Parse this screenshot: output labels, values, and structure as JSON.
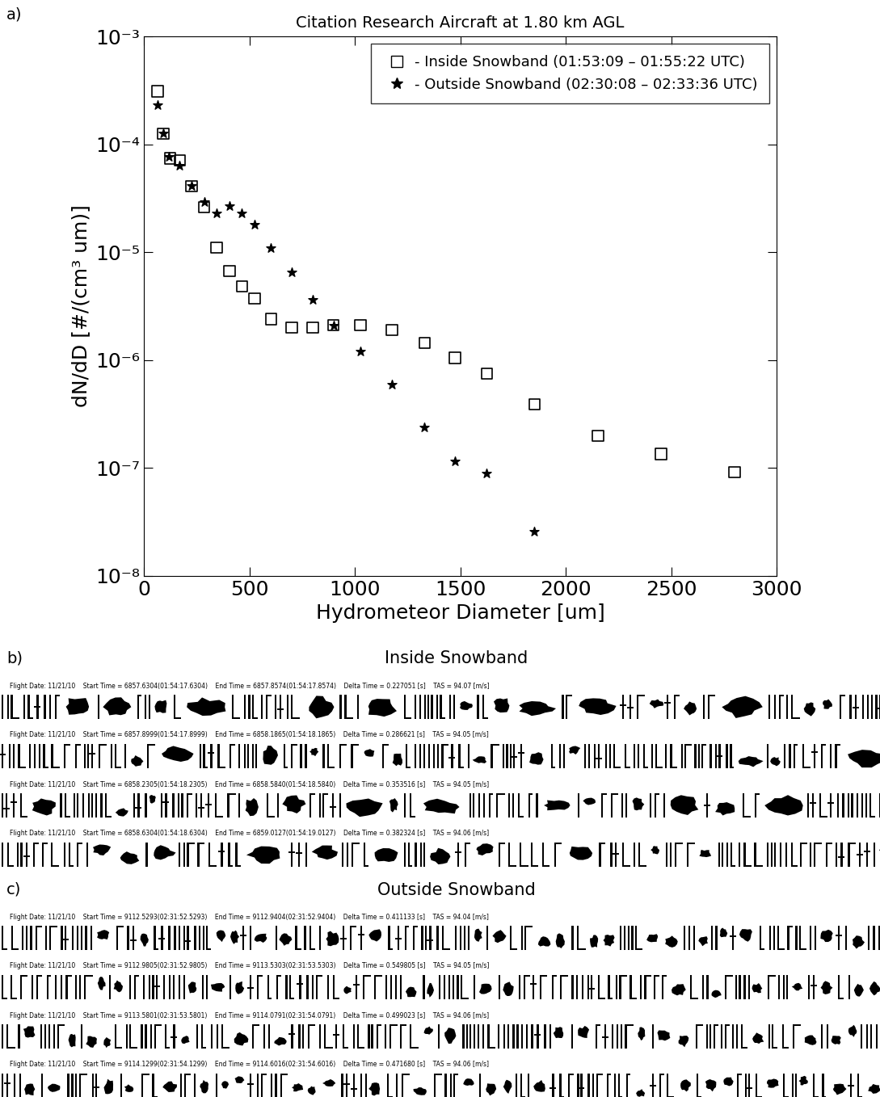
{
  "chart_data": {
    "type": "scatter",
    "panel_label": "a)",
    "title": "Citation Research Aircraft at 1.80 km AGL",
    "x_label": "Hydrometeor Diameter [um]",
    "y_label": "dN/dD [#/(cm³ um)]",
    "log": "y",
    "grid": false,
    "legend": "upper right",
    "xlim": [
      0,
      3000
    ],
    "xticks": [
      0,
      500,
      1000,
      1500,
      2000,
      2500,
      3000
    ],
    "ylim": [
      1e-08,
      0.001
    ],
    "yticks": [
      {
        "value": 1e-08,
        "label": "10⁻⁸"
      },
      {
        "value": 1e-07,
        "label": "10⁻⁷"
      },
      {
        "value": 1e-06,
        "label": "10⁻⁶"
      },
      {
        "value": 1e-05,
        "label": "10⁻⁵"
      },
      {
        "value": 0.0001,
        "label": "10⁻⁴"
      },
      {
        "value": 0.001,
        "label": "10⁻³"
      }
    ],
    "series": [
      {
        "name": "- Inside Snowband (01:53:09 – 01:55:22 UTC)",
        "color": "#000000",
        "marker": "square",
        "x": [
          65,
          92,
          123,
          169,
          226,
          287,
          345,
          406,
          464,
          525,
          602,
          701,
          801,
          900,
          1027,
          1176,
          1330,
          1475,
          1625,
          1851,
          2153,
          2452,
          2801
        ],
        "values": [
          0.00031,
          0.000126,
          7.4e-05,
          7.1e-05,
          4.1e-05,
          2.6e-05,
          1.1e-05,
          6.7e-06,
          4.8e-06,
          3.7e-06,
          2.4e-06,
          2e-06,
          2e-06,
          2.1e-06,
          2.1e-06,
          1.9e-06,
          1.45e-06,
          1.05e-06,
          7.5e-07,
          3.9e-07,
          2e-07,
          1.35e-07,
          9.2e-08
        ]
      },
      {
        "name": "- Outside Snowband (02:30:08 – 02:33:36 UTC)",
        "color": "#000000",
        "marker": "star",
        "x": [
          65,
          92,
          119,
          169,
          226,
          287,
          345,
          406,
          464,
          525,
          602,
          701,
          801,
          900,
          1027,
          1176,
          1330,
          1475,
          1625,
          1851
        ],
        "values": [
          0.00023,
          0.000126,
          7.7e-05,
          6.3e-05,
          4.1e-05,
          2.9e-05,
          2.3e-05,
          2.7e-05,
          2.3e-05,
          1.8e-05,
          1.1e-05,
          6.5e-06,
          3.6e-06,
          2.1e-06,
          1.2e-06,
          5.9e-07,
          2.4e-07,
          1.15e-07,
          8.9e-08,
          2.6e-08
        ]
      }
    ]
  },
  "image_panels": [
    {
      "panel_label": "b)",
      "title": "Inside Snowband",
      "rows": [
        "Flight Date: 11/21/10    Start Time = 6857.6304(01:54:17.6304)    End Time = 6857.8574(01:54:17.8574)    Delta Time = 0.227051 [s]    TAS = 94.07 [m/s]",
        "Flight Date: 11/21/10    Start Time = 6857.8999(01:54:17.8999)    End Time = 6858.1865(01:54:18.1865)    Delta Time = 0.286621 [s]    TAS = 94.05 [m/s]",
        "Flight Date: 11/21/10    Start Time = 6858.2305(01:54:18.2305)    End Time = 6858.5840(01:54:18.5840)    Delta Time = 0.353516 [s]    TAS = 94.05 [m/s]",
        "Flight Date: 11/21/10    Start Time = 6858.6304(01:54:18.6304)    End Time = 6859.0127(01:54:19.0127)    Delta Time = 0.382324 [s]    TAS = 94.06 [m/s]"
      ]
    },
    {
      "panel_label": "c)",
      "title": "Outside Snowband",
      "rows": [
        "Flight Date: 11/21/10    Start Time = 9112.5293(02:31:52.5293)    End Time = 9112.9404(02:31:52.9404)    Delta Time = 0.411133 [s]    TAS = 94.04 [m/s]",
        "Flight Date: 11/21/10    Start Time = 9112.9805(02:31:52.9805)    End Time = 9113.5303(02:31:53.5303)    Delta Time = 0.549805 [s]    TAS = 94.05 [m/s]",
        "Flight Date: 11/21/10    Start Time = 9113.5801(02:31:53.5801)    End Time = 9114.0791(02:31:54.0791)    Delta Time = 0.499023 [s]    TAS = 94.06 [m/s]",
        "Flight Date: 11/21/10    Start Time = 9114.1299(02:31:54.1299)    End Time = 9114.6016(02:31:54.6016)    Delta Time = 0.471680 [s]    TAS = 94.06 [m/s]"
      ]
    }
  ]
}
